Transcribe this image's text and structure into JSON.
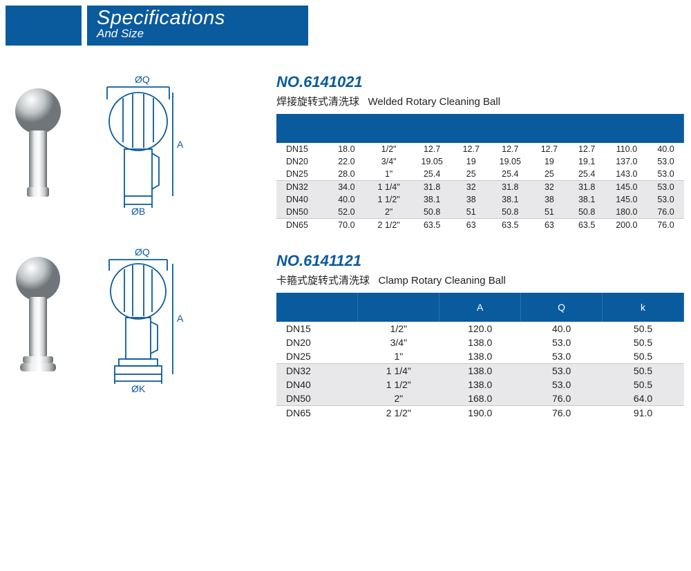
{
  "header": {
    "title": "Specifications",
    "subtitle": "And Size"
  },
  "sections": [
    {
      "number": "NO.6141021",
      "name_cn": "焊接旋转式清洗球",
      "name_en": "Welded Rotary Cleaning Ball",
      "diagram_labels": {
        "top": "ØQ",
        "side": "A",
        "bottom": "ØB"
      },
      "header_bg": "#0a5a9e",
      "rows": [
        {
          "g": "a",
          "c": [
            "DN15",
            "18.0",
            "1/2\"",
            "12.7",
            "12.7",
            "12.7",
            "12.7",
            "12.7",
            "110.0",
            "40.0"
          ]
        },
        {
          "g": "a",
          "c": [
            "DN20",
            "22.0",
            "3/4\"",
            "19.05",
            "19",
            "19.05",
            "19",
            "19.1",
            "137.0",
            "53.0"
          ]
        },
        {
          "g": "a",
          "c": [
            "DN25",
            "28.0",
            "1\"",
            "25.4",
            "25",
            "25.4",
            "25",
            "25.4",
            "143.0",
            "53.0"
          ]
        },
        {
          "g": "b",
          "c": [
            "DN32",
            "34.0",
            "1 1/4\"",
            "31.8",
            "32",
            "31.8",
            "32",
            "31.8",
            "145.0",
            "53.0"
          ]
        },
        {
          "g": "b",
          "c": [
            "DN40",
            "40.0",
            "1 1/2\"",
            "38.1",
            "38",
            "38.1",
            "38",
            "38.1",
            "145.0",
            "53.0"
          ]
        },
        {
          "g": "b",
          "c": [
            "DN50",
            "52.0",
            "2\"",
            "50.8",
            "51",
            "50.8",
            "51",
            "50.8",
            "180.0",
            "76.0"
          ]
        },
        {
          "g": "a",
          "c": [
            "DN65",
            "70.0",
            "2 1/2\"",
            "63.5",
            "63",
            "63.5",
            "63",
            "63.5",
            "200.0",
            "76.0"
          ]
        }
      ]
    },
    {
      "number": "NO.6141121",
      "name_cn": "卡箍式旋转式清洗球",
      "name_en": "Clamp Rotary Cleaning Ball",
      "diagram_labels": {
        "top": "ØQ",
        "side": "A",
        "bottom": "ØK"
      },
      "header_bg": "#0a5a9e",
      "headers": [
        "",
        "",
        "A",
        "Q",
        "k"
      ],
      "rows": [
        {
          "g": "a",
          "c": [
            "DN15",
            "1/2\"",
            "120.0",
            "40.0",
            "50.5"
          ]
        },
        {
          "g": "a",
          "c": [
            "DN20",
            "3/4\"",
            "138.0",
            "53.0",
            "50.5"
          ]
        },
        {
          "g": "a",
          "c": [
            "DN25",
            "1\"",
            "138.0",
            "53.0",
            "50.5"
          ]
        },
        {
          "g": "b",
          "c": [
            "DN32",
            "1 1/4\"",
            "138.0",
            "53.0",
            "50.5"
          ]
        },
        {
          "g": "b",
          "c": [
            "DN40",
            "1 1/2\"",
            "138.0",
            "53.0",
            "50.5"
          ]
        },
        {
          "g": "b",
          "c": [
            "DN50",
            "2\"",
            "168.0",
            "76.0",
            "64.0"
          ]
        },
        {
          "g": "a",
          "c": [
            "DN65",
            "2 1/2\"",
            "190.0",
            "76.0",
            "91.0"
          ]
        }
      ]
    }
  ]
}
